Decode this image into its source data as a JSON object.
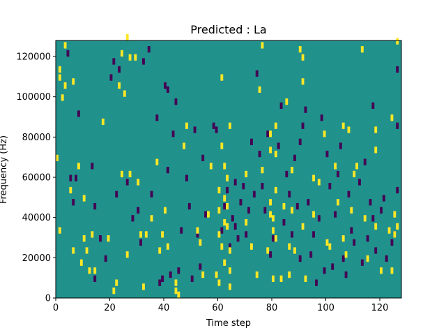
{
  "chart_data": {
    "type": "heatmap",
    "title": "Predicted : La",
    "xlabel": "Time step",
    "ylabel": "Frequency (Hz)",
    "xlim": [
      0,
      128
    ],
    "ylim": [
      0,
      128000
    ],
    "x_ticks": [
      0,
      20,
      40,
      60,
      80,
      100,
      120
    ],
    "y_ticks": [
      0,
      20000,
      40000,
      60000,
      80000,
      100000,
      120000
    ],
    "colormap": {
      "low": "#440154",
      "mid": "#21918c",
      "high": "#fde725"
    },
    "background_value": "mid",
    "grid": false,
    "cell_size": {
      "time_steps": 1,
      "frequency_hz": 3200
    },
    "high_cells": [
      [
        0,
        68000
      ],
      [
        1,
        112000
      ],
      [
        1,
        108000
      ],
      [
        1,
        32000
      ],
      [
        2,
        98000
      ],
      [
        3,
        124000
      ],
      [
        3,
        104000
      ],
      [
        5,
        52000
      ],
      [
        6,
        106000
      ],
      [
        6,
        22000
      ],
      [
        8,
        64000
      ],
      [
        9,
        16000
      ],
      [
        10,
        48000
      ],
      [
        10,
        28000
      ],
      [
        11,
        22000
      ],
      [
        12,
        12000
      ],
      [
        13,
        30000
      ],
      [
        14,
        12000
      ],
      [
        17,
        86000
      ],
      [
        19,
        28000
      ],
      [
        21,
        2000
      ],
      [
        22,
        6000
      ],
      [
        23,
        104000
      ],
      [
        24,
        120000
      ],
      [
        24,
        60000
      ],
      [
        25,
        100000
      ],
      [
        26,
        128000
      ],
      [
        26,
        20000
      ],
      [
        27,
        60000
      ],
      [
        27,
        118000
      ],
      [
        29,
        118000
      ],
      [
        30,
        56000
      ],
      [
        31,
        30000
      ],
      [
        32,
        4000
      ],
      [
        33,
        30000
      ],
      [
        35,
        38000
      ],
      [
        37,
        66000
      ],
      [
        38,
        22000
      ],
      [
        39,
        30000
      ],
      [
        40,
        42000
      ],
      [
        41,
        24000
      ],
      [
        44,
        6000
      ],
      [
        44,
        2000
      ],
      [
        45,
        0
      ],
      [
        47,
        74000
      ],
      [
        48,
        84000
      ],
      [
        52,
        32000
      ],
      [
        53,
        26000
      ],
      [
        54,
        10000
      ],
      [
        56,
        40000
      ],
      [
        57,
        64000
      ],
      [
        59,
        10000
      ],
      [
        60,
        6000
      ],
      [
        60,
        52000
      ],
      [
        60,
        42000
      ],
      [
        60,
        30000
      ],
      [
        61,
        108000
      ],
      [
        61,
        74000
      ],
      [
        61,
        24000
      ],
      [
        62,
        64000
      ],
      [
        62,
        48000
      ],
      [
        62,
        36000
      ],
      [
        62,
        16000
      ],
      [
        63,
        58000
      ],
      [
        63,
        44000
      ],
      [
        63,
        34000
      ],
      [
        64,
        84000
      ],
      [
        64,
        4000
      ],
      [
        64,
        12000
      ],
      [
        64,
        22000
      ],
      [
        70,
        60000
      ],
      [
        70,
        36000
      ],
      [
        72,
        24000
      ],
      [
        74,
        10000
      ],
      [
        75,
        102000
      ],
      [
        76,
        62000
      ],
      [
        76,
        124000
      ],
      [
        78,
        22000
      ],
      [
        79,
        46000
      ],
      [
        79,
        40000
      ],
      [
        79,
        80000
      ],
      [
        79,
        72000
      ],
      [
        80,
        38000
      ],
      [
        80,
        32000
      ],
      [
        80,
        8000
      ],
      [
        81,
        84000
      ],
      [
        81,
        70000
      ],
      [
        81,
        52000
      ],
      [
        81,
        28000
      ],
      [
        83,
        8000
      ],
      [
        84,
        44000
      ],
      [
        85,
        96000
      ],
      [
        86,
        10000
      ],
      [
        86,
        24000
      ],
      [
        87,
        62000
      ],
      [
        87,
        42000
      ],
      [
        88,
        22000
      ],
      [
        90,
        122000
      ],
      [
        91,
        118000
      ],
      [
        91,
        106000
      ],
      [
        91,
        34000
      ],
      [
        92,
        8000
      ],
      [
        95,
        58000
      ],
      [
        95,
        40000
      ],
      [
        97,
        56000
      ],
      [
        99,
        80000
      ],
      [
        100,
        26000
      ],
      [
        101,
        24000
      ],
      [
        103,
        64000
      ],
      [
        104,
        46000
      ],
      [
        106,
        84000
      ],
      [
        106,
        28000
      ],
      [
        107,
        20000
      ],
      [
        108,
        82000
      ],
      [
        109,
        42000
      ],
      [
        110,
        60000
      ],
      [
        111,
        64000
      ],
      [
        113,
        122000
      ],
      [
        114,
        38000
      ],
      [
        115,
        18000
      ],
      [
        118,
        82000
      ],
      [
        118,
        72000
      ],
      [
        118,
        34000
      ],
      [
        120,
        12000
      ],
      [
        123,
        32000
      ],
      [
        124,
        12000
      ],
      [
        124,
        88000
      ],
      [
        125,
        40000
      ],
      [
        125,
        30000
      ],
      [
        126,
        126000
      ],
      [
        126,
        34000
      ]
    ],
    "low_cells": [
      [
        4,
        120000
      ],
      [
        5,
        58000
      ],
      [
        6,
        46000
      ],
      [
        7,
        58000
      ],
      [
        8,
        90000
      ],
      [
        13,
        64000
      ],
      [
        14,
        8000
      ],
      [
        14,
        44000
      ],
      [
        16,
        28000
      ],
      [
        18,
        18000
      ],
      [
        20,
        108000
      ],
      [
        21,
        116000
      ],
      [
        22,
        50000
      ],
      [
        23,
        112000
      ],
      [
        26,
        56000
      ],
      [
        28,
        38000
      ],
      [
        30,
        42000
      ],
      [
        31,
        26000
      ],
      [
        32,
        116000
      ],
      [
        34,
        122000
      ],
      [
        35,
        50000
      ],
      [
        37,
        88000
      ],
      [
        38,
        6000
      ],
      [
        39,
        8000
      ],
      [
        40,
        104000
      ],
      [
        41,
        102000
      ],
      [
        41,
        62000
      ],
      [
        42,
        10000
      ],
      [
        43,
        80000
      ],
      [
        44,
        96000
      ],
      [
        45,
        12000
      ],
      [
        46,
        32000
      ],
      [
        48,
        58000
      ],
      [
        49,
        44000
      ],
      [
        50,
        8000
      ],
      [
        51,
        82000
      ],
      [
        52,
        30000
      ],
      [
        53,
        14000
      ],
      [
        54,
        68000
      ],
      [
        55,
        40000
      ],
      [
        58,
        84000
      ],
      [
        59,
        82000
      ],
      [
        60,
        42000
      ],
      [
        61,
        32000
      ],
      [
        62,
        44000
      ],
      [
        63,
        52000
      ],
      [
        64,
        24000
      ],
      [
        65,
        38000
      ],
      [
        66,
        56000
      ],
      [
        66,
        34000
      ],
      [
        67,
        28000
      ],
      [
        68,
        46000
      ],
      [
        69,
        54000
      ],
      [
        70,
        30000
      ],
      [
        71,
        42000
      ],
      [
        72,
        76000
      ],
      [
        73,
        50000
      ],
      [
        74,
        110000
      ],
      [
        75,
        70000
      ],
      [
        76,
        54000
      ],
      [
        77,
        42000
      ],
      [
        78,
        80000
      ],
      [
        79,
        20000
      ],
      [
        80,
        28000
      ],
      [
        82,
        74000
      ],
      [
        83,
        94000
      ],
      [
        84,
        36000
      ],
      [
        85,
        60000
      ],
      [
        86,
        50000
      ],
      [
        87,
        30000
      ],
      [
        88,
        68000
      ],
      [
        89,
        44000
      ],
      [
        90,
        76000
      ],
      [
        90,
        18000
      ],
      [
        91,
        84000
      ],
      [
        92,
        92000
      ],
      [
        93,
        46000
      ],
      [
        94,
        20000
      ],
      [
        95,
        30000
      ],
      [
        96,
        6000
      ],
      [
        97,
        38000
      ],
      [
        98,
        88000
      ],
      [
        99,
        12000
      ],
      [
        100,
        70000
      ],
      [
        101,
        54000
      ],
      [
        102,
        14000
      ],
      [
        103,
        40000
      ],
      [
        104,
        60000
      ],
      [
        105,
        74000
      ],
      [
        106,
        18000
      ],
      [
        107,
        10000
      ],
      [
        108,
        50000
      ],
      [
        109,
        32000
      ],
      [
        110,
        26000
      ],
      [
        112,
        56000
      ],
      [
        114,
        66000
      ],
      [
        116,
        46000
      ],
      [
        117,
        94000
      ],
      [
        118,
        22000
      ],
      [
        120,
        42000
      ],
      [
        121,
        48000
      ],
      [
        122,
        18000
      ],
      [
        124,
        26000
      ],
      [
        125,
        30000
      ],
      [
        126,
        52000
      ],
      [
        126,
        112000
      ],
      [
        126,
        84000
      ],
      [
        113,
        16000
      ],
      [
        115,
        28000
      ],
      [
        117,
        38000
      ]
    ]
  }
}
